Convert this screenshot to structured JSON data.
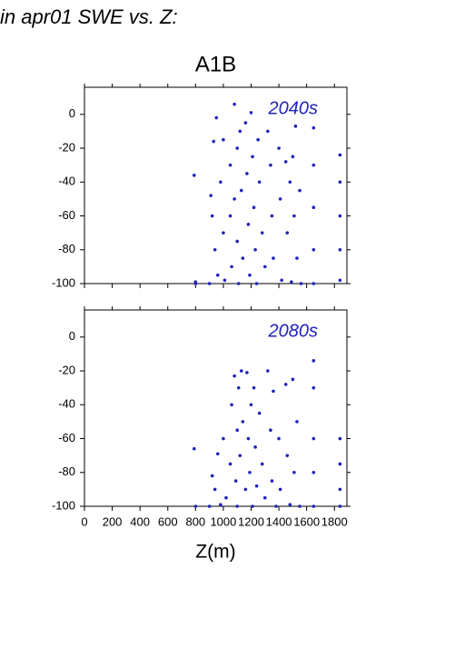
{
  "title": "in apr01 SWE vs. Z:",
  "chart_data": [
    {
      "type": "scatter",
      "title": "A1B",
      "annotation": "2040s",
      "color": "#2222bb",
      "show_xtick_labels": false,
      "xlim": [
        0,
        1890
      ],
      "ylim": [
        -100,
        16
      ],
      "xticks": [
        0,
        200,
        400,
        600,
        800,
        1000,
        1200,
        1400,
        1600,
        1800
      ],
      "yticks": [
        0,
        -20,
        -40,
        -60,
        -80,
        -100
      ],
      "x": [
        790,
        800,
        800,
        900,
        910,
        920,
        930,
        940,
        950,
        960,
        980,
        1000,
        1000,
        1010,
        1050,
        1050,
        1060,
        1080,
        1080,
        1100,
        1100,
        1110,
        1120,
        1130,
        1140,
        1160,
        1170,
        1180,
        1190,
        1200,
        1210,
        1220,
        1230,
        1240,
        1250,
        1260,
        1280,
        1300,
        1320,
        1340,
        1350,
        1360,
        1400,
        1410,
        1420,
        1450,
        1460,
        1480,
        1490,
        1500,
        1510,
        1520,
        1530,
        1550,
        1560,
        1650,
        1650,
        1650,
        1650,
        1650,
        1840,
        1840,
        1840,
        1840,
        1840
      ],
      "y": [
        -36,
        -99,
        -100,
        -100,
        -48,
        -60,
        -16,
        -80,
        -2,
        -95,
        -40,
        -15,
        -70,
        -98,
        -30,
        -60,
        -90,
        6,
        -50,
        -20,
        -75,
        -100,
        -10,
        -45,
        -85,
        -5,
        -35,
        -65,
        -95,
        1,
        -25,
        -55,
        -80,
        -100,
        -15,
        -40,
        -70,
        -90,
        -10,
        -30,
        -60,
        -85,
        -20,
        -50,
        -98,
        -28,
        -70,
        -40,
        -99,
        -25,
        -60,
        -7,
        -85,
        -45,
        -100,
        -8,
        -30,
        -55,
        -80,
        -100,
        -24,
        -40,
        -60,
        -80,
        -98
      ]
    },
    {
      "type": "scatter",
      "annotation": "2080s",
      "xlabel": "Z(m)",
      "color": "#2222bb",
      "show_xtick_labels": true,
      "xlim": [
        0,
        1890
      ],
      "ylim": [
        -100,
        16
      ],
      "xticks": [
        0,
        200,
        400,
        600,
        800,
        1000,
        1200,
        1400,
        1600,
        1800
      ],
      "yticks": [
        0,
        -20,
        -40,
        -60,
        -80,
        -100
      ],
      "x": [
        790,
        800,
        900,
        920,
        940,
        960,
        980,
        1000,
        1020,
        1050,
        1060,
        1080,
        1090,
        1100,
        1100,
        1110,
        1120,
        1130,
        1140,
        1160,
        1170,
        1180,
        1190,
        1200,
        1210,
        1220,
        1230,
        1240,
        1260,
        1280,
        1300,
        1320,
        1340,
        1350,
        1360,
        1380,
        1400,
        1410,
        1450,
        1460,
        1480,
        1500,
        1510,
        1530,
        1550,
        1650,
        1650,
        1650,
        1650,
        1650,
        1840,
        1840,
        1840,
        1840
      ],
      "y": [
        -66,
        -100,
        -100,
        -82,
        -90,
        -69,
        -99,
        -60,
        -95,
        -75,
        -40,
        -23,
        -85,
        -55,
        -100,
        -30,
        -70,
        -20,
        -50,
        -90,
        -21,
        -60,
        -80,
        -40,
        -100,
        -30,
        -65,
        -88,
        -45,
        -75,
        -95,
        -20,
        -55,
        -85,
        -32,
        -100,
        -60,
        -90,
        -28,
        -70,
        -99,
        -25,
        -80,
        -50,
        -100,
        -14,
        -30,
        -60,
        -80,
        -100,
        -60,
        -75,
        -90,
        -100
      ]
    }
  ]
}
